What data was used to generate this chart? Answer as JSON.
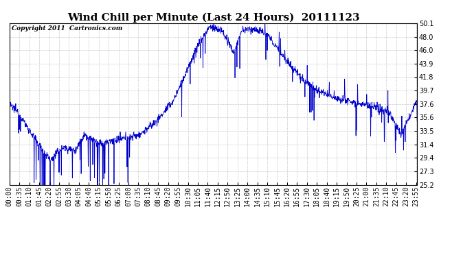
{
  "title": "Wind Chill per Minute (Last 24 Hours)  20111123",
  "copyright": "Copyright 2011  Cartronics.com",
  "line_color": "#0000cc",
  "background_color": "#ffffff",
  "grid_color": "#bbbbbb",
  "yticks": [
    25.2,
    27.3,
    29.4,
    31.4,
    33.5,
    35.6,
    37.6,
    39.7,
    41.8,
    43.9,
    46.0,
    48.0,
    50.1
  ],
  "ymin": 25.2,
  "ymax": 50.1,
  "title_fontsize": 11,
  "copyright_fontsize": 6.5,
  "tick_label_fontsize": 7,
  "xtick_step": 35,
  "total_minutes": 1440
}
